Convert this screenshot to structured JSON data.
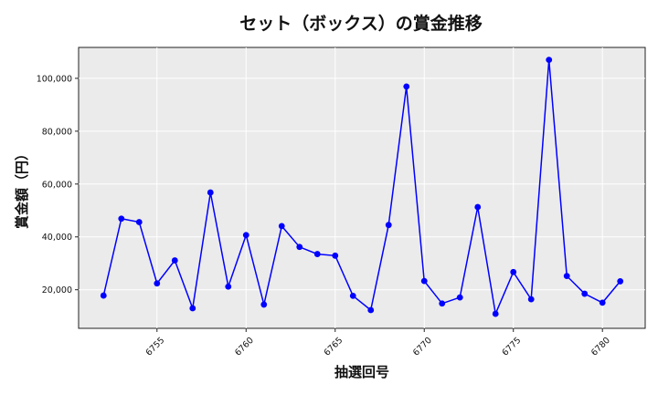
{
  "chart_data": {
    "type": "line",
    "title": "セット（ボックス）の賞金推移",
    "xlabel": "抽選回号",
    "ylabel": "賞金額（円）",
    "x": [
      6752,
      6753,
      6754,
      6755,
      6756,
      6757,
      6758,
      6759,
      6760,
      6761,
      6762,
      6763,
      6764,
      6765,
      6766,
      6767,
      6768,
      6769,
      6770,
      6771,
      6772,
      6773,
      6774,
      6775,
      6776,
      6777,
      6778,
      6779,
      6780,
      6781
    ],
    "values": [
      17800,
      46900,
      45600,
      22400,
      31100,
      13000,
      56800,
      21200,
      40700,
      14400,
      44100,
      36200,
      33500,
      32900,
      17700,
      12300,
      44500,
      96900,
      23300,
      14800,
      17100,
      51300,
      10900,
      26700,
      16400,
      107000,
      25200,
      18500,
      15100,
      23200
    ],
    "xlim": [
      6750.6,
      6782.4
    ],
    "ylim": [
      5400,
      111700
    ],
    "xticks": [
      6755,
      6760,
      6765,
      6770,
      6775,
      6780
    ],
    "yticks": [
      20000,
      40000,
      60000,
      80000,
      100000
    ],
    "ytick_labels": [
      "20,000",
      "40,000",
      "60,000",
      "80,000",
      "100,000"
    ],
    "grid": true,
    "line_color": "#0000ff",
    "marker_color": "#0000ff",
    "plot_background": "#ebebeb"
  }
}
